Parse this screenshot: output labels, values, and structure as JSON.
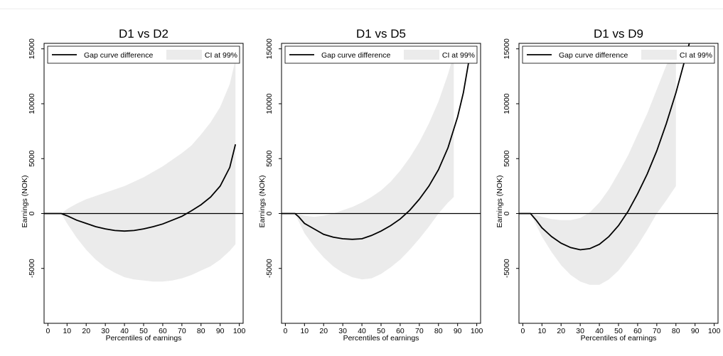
{
  "chart_data": [
    {
      "type": "line",
      "title": "D1 vs D2",
      "xlabel": "Percentiles of earnings",
      "ylabel": "Earnings (NOK)",
      "xlim": [
        -2,
        102
      ],
      "ylim": [
        -10000,
        15500
      ],
      "xticks": [
        0,
        10,
        20,
        30,
        40,
        50,
        60,
        70,
        80,
        90,
        100
      ],
      "yticks": [
        -5000,
        0,
        5000,
        10000,
        15000
      ],
      "legend": {
        "position": "top",
        "items": [
          "Gap curve difference",
          "CI at 99%"
        ]
      },
      "grid": false,
      "series": [
        {
          "name": "Gap curve difference",
          "x": [
            -2,
            7,
            10,
            15,
            20,
            25,
            30,
            35,
            40,
            45,
            50,
            55,
            60,
            65,
            70,
            75,
            80,
            85,
            90,
            95,
            98
          ],
          "y": [
            0,
            0,
            -200,
            -600,
            -900,
            -1200,
            -1400,
            -1550,
            -1600,
            -1550,
            -1400,
            -1200,
            -950,
            -600,
            -250,
            250,
            800,
            1500,
            2500,
            4200,
            6300
          ]
        }
      ],
      "confidence_band": {
        "name": "CI at 99%",
        "x": [
          7,
          10,
          15,
          20,
          25,
          30,
          35,
          40,
          45,
          50,
          55,
          60,
          65,
          70,
          75,
          80,
          85,
          90,
          95,
          98
        ],
        "upper": [
          0,
          400,
          900,
          1300,
          1600,
          1900,
          2200,
          2500,
          2900,
          3300,
          3800,
          4300,
          4900,
          5500,
          6200,
          7200,
          8300,
          9700,
          11800,
          14000
        ],
        "lower": [
          0,
          -900,
          -2200,
          -3300,
          -4200,
          -4900,
          -5400,
          -5800,
          -6000,
          -6100,
          -6200,
          -6200,
          -6100,
          -5900,
          -5600,
          -5200,
          -4800,
          -4200,
          -3400,
          -2800
        ]
      },
      "reference_line": 0
    },
    {
      "type": "line",
      "title": "D1 vs D5",
      "xlabel": "Percentiles of earnings",
      "ylabel": "Earnings (NOK)",
      "xlim": [
        -2,
        102
      ],
      "ylim": [
        -10000,
        15500
      ],
      "xticks": [
        0,
        10,
        20,
        30,
        40,
        50,
        60,
        70,
        80,
        90,
        100
      ],
      "yticks": [
        -5000,
        0,
        5000,
        10000,
        15000
      ],
      "legend": {
        "position": "top",
        "items": [
          "Gap curve difference",
          "CI at 99%"
        ]
      },
      "grid": false,
      "series": [
        {
          "name": "Gap curve difference",
          "x": [
            -2,
            5,
            7,
            10,
            15,
            20,
            25,
            30,
            35,
            40,
            45,
            50,
            55,
            60,
            65,
            70,
            75,
            80,
            85,
            90,
            93,
            96
          ],
          "y": [
            0,
            0,
            -300,
            -900,
            -1400,
            -1900,
            -2150,
            -2300,
            -2350,
            -2300,
            -2000,
            -1600,
            -1100,
            -500,
            300,
            1300,
            2500,
            4000,
            6000,
            8800,
            11000,
            14000
          ]
        }
      ],
      "confidence_band": {
        "name": "CI at 99%",
        "x": [
          5,
          10,
          15,
          20,
          25,
          30,
          35,
          40,
          45,
          50,
          55,
          60,
          65,
          70,
          75,
          80,
          85,
          88
        ],
        "upper": [
          0,
          -200,
          -300,
          -200,
          0,
          300,
          600,
          1000,
          1500,
          2100,
          2900,
          3900,
          5100,
          6500,
          8200,
          10200,
          12700,
          14500
        ],
        "lower": [
          0,
          -1800,
          -3000,
          -4000,
          -4800,
          -5400,
          -5800,
          -6000,
          -5900,
          -5500,
          -4900,
          -4200,
          -3300,
          -2300,
          -1200,
          0,
          1000,
          1500
        ]
      },
      "reference_line": 0
    },
    {
      "type": "line",
      "title": "D1 vs D9",
      "xlabel": "Percentiles of earnings",
      "ylabel": "Earnings (NOK)",
      "xlim": [
        -2,
        102
      ],
      "ylim": [
        -10000,
        15500
      ],
      "xticks": [
        0,
        10,
        20,
        30,
        40,
        50,
        60,
        70,
        80,
        90,
        100
      ],
      "yticks": [
        -5000,
        0,
        5000,
        10000,
        15000
      ],
      "legend": {
        "position": "top",
        "items": [
          "Gap curve difference",
          "CI at 99%"
        ]
      },
      "grid": false,
      "series": [
        {
          "name": "Gap curve difference",
          "x": [
            -2,
            4,
            7,
            10,
            15,
            20,
            25,
            30,
            35,
            40,
            45,
            50,
            55,
            60,
            65,
            70,
            75,
            80,
            85,
            87
          ],
          "y": [
            0,
            0,
            -600,
            -1300,
            -2100,
            -2700,
            -3100,
            -3300,
            -3200,
            -2800,
            -2100,
            -1100,
            200,
            1800,
            3600,
            5700,
            8200,
            11000,
            14200,
            15500
          ]
        }
      ],
      "confidence_band": {
        "name": "CI at 99%",
        "x": [
          4,
          10,
          15,
          20,
          25,
          30,
          35,
          40,
          45,
          50,
          55,
          60,
          65,
          70,
          75,
          80
        ],
        "upper": [
          0,
          -300,
          -500,
          -600,
          -600,
          -400,
          100,
          1000,
          2200,
          3700,
          5300,
          7200,
          9100,
          11300,
          13500,
          15000
        ],
        "lower": [
          0,
          -2100,
          -3500,
          -4700,
          -5600,
          -6200,
          -6500,
          -6500,
          -6000,
          -5200,
          -4100,
          -2900,
          -1500,
          0,
          1200,
          2500
        ]
      },
      "reference_line": 0
    }
  ]
}
